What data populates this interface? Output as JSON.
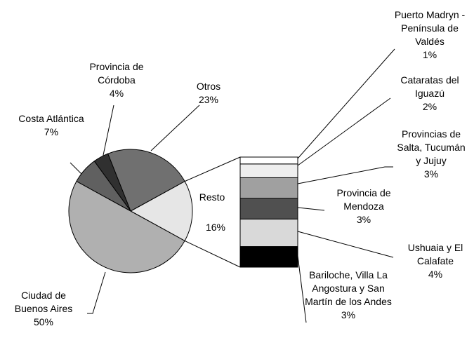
{
  "chart_data": {
    "type": "pie-of-bar",
    "categories": [
      "Resto",
      "Otros",
      "Provincia de Córdoba",
      "Costa Atlántica",
      "Ciudad de Buenos Aires"
    ],
    "values": [
      16,
      23,
      4,
      7,
      50
    ],
    "value_labels": [
      "16%",
      "23%",
      "4%",
      "7%",
      "50%"
    ],
    "colors": [
      "#e6e6e6",
      "#707070",
      "#303030",
      "#606060",
      "#b0b0b0"
    ],
    "bar": {
      "categories": [
        "Bariloche, Villa La Angostura y San Martín de los Andes",
        "Ushuaia y El Calafate",
        "Provincia de Mendoza",
        "Provincias de Salta, Tucumán y Jujuy",
        "Cataratas del Iguazú",
        "Puerto Madryn - Península de Valdés"
      ],
      "values": [
        3,
        4,
        3,
        3,
        2,
        1
      ],
      "value_labels": [
        "3%",
        "4%",
        "3%",
        "3%",
        "2%",
        "1%"
      ],
      "colors": [
        "#000000",
        "#d9d9d9",
        "#505050",
        "#a0a0a0",
        "#eeeeee",
        "#ffffff"
      ]
    }
  }
}
